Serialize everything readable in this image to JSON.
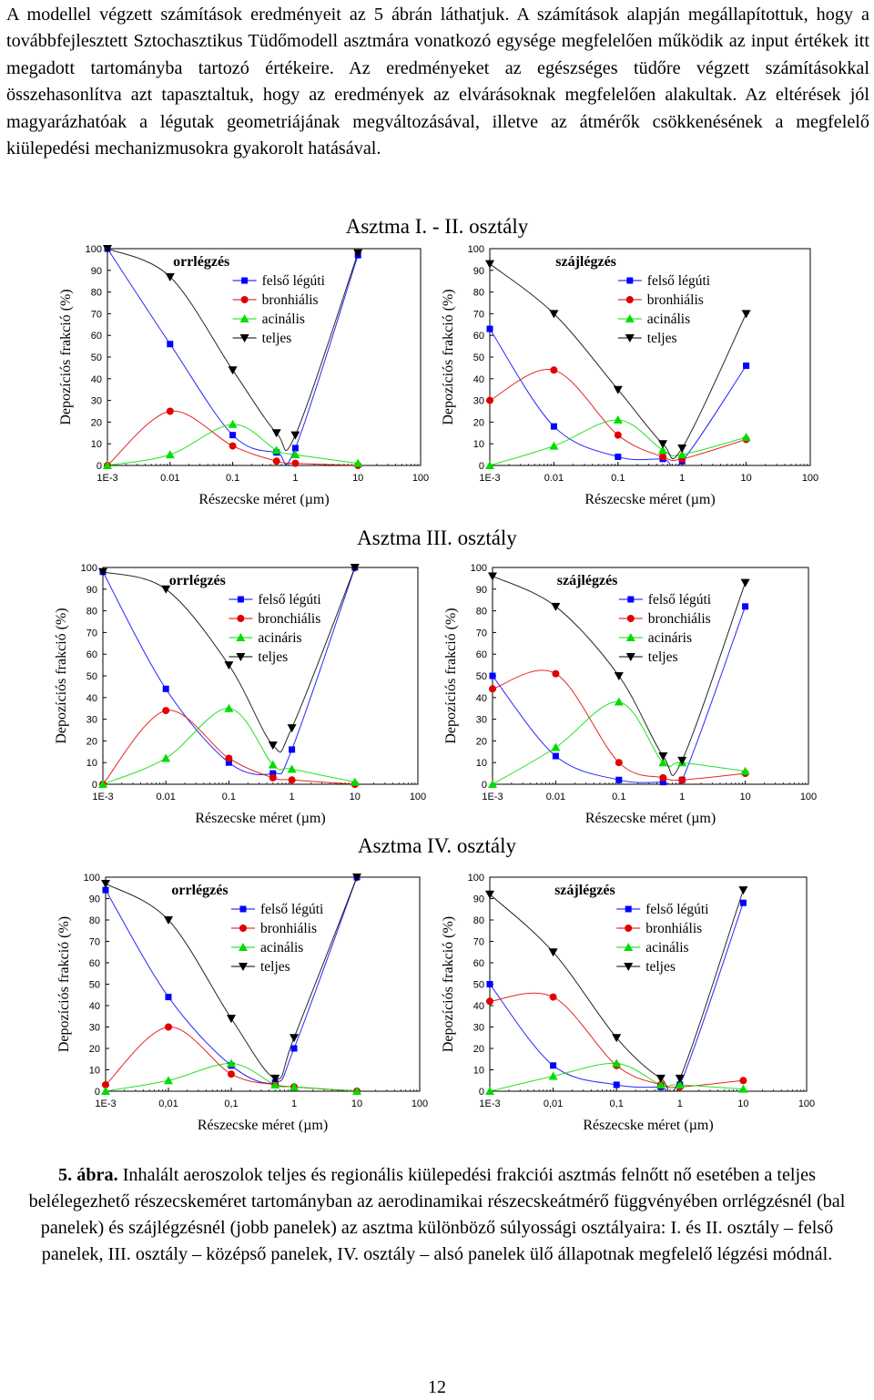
{
  "paragraph": "A modellel végzett számítások eredményeit az 5 ábrán láthatjuk. A számítások alapján megállapítottuk, hogy a továbbfejlesztett Sztochasztikus Tüdőmodell asztmára vonatkozó egysége megfelelően működik az input értékek itt megadott tartományba tartozó értékeire. Az eredményeket az egészséges tüdőre végzett számításokkal összehasonlítva azt tapasztaltuk, hogy az eredmények az elvárásoknak megfelelően alakultak. Az eltérések jól magyarázhatóak a légutak geometriájának megváltozásával, illetve az átmérők csökkenésének a megfelelő kiülepedési mechanizmusokra gyakorolt hatásával.",
  "rows": [
    {
      "heading": "Asztma I. - II. osztály"
    },
    {
      "heading": "Asztma III. osztály"
    },
    {
      "heading": "Asztma IV. osztály"
    }
  ],
  "caption": {
    "label": "5. ábra.",
    "text": " Inhalált aeroszolok teljes és regionális kiülepedési frakciói asztmás felnőtt nő esetében a teljes belélegezhető részecskeméret tartományban az aerodinamikai részecskeátmérő függvényében orrlégzésnél (bal panelek) és szájlégzésnél (jobb panelek) az asztma különböző súlyossági osztályaira: I. és II. osztály – felső panelek, III. osztály – középső panelek, IV. osztály – alsó panelek ülő állapotnak megfelelő légzési módnál."
  },
  "page_number": "12",
  "chart_data": [
    {
      "type": "line",
      "panel": "row1-left",
      "title": "orrlégzés",
      "xlabel": "Részecske méret (µm)",
      "ylabel": "Depozíciós frakció (%)",
      "x_scale": "log",
      "xlim": [
        0.001,
        100
      ],
      "ylim": [
        0,
        100
      ],
      "x_ticks": [
        "1E-3",
        "0.01",
        "0.1",
        "1",
        "10",
        "100"
      ],
      "y_ticks": [
        "0",
        "10",
        "20",
        "30",
        "40",
        "50",
        "60",
        "70",
        "80",
        "90",
        "100"
      ],
      "legend_position": "top-right",
      "series": [
        {
          "name": "felső légúti",
          "color": "#0000ff",
          "marker": "square",
          "x": [
            0.001,
            0.01,
            0.1,
            0.5,
            1,
            10
          ],
          "y": [
            100,
            56,
            14,
            6,
            8,
            97
          ]
        },
        {
          "name": "bronhiális",
          "color": "#e00000",
          "marker": "circle",
          "x": [
            0.001,
            0.01,
            0.1,
            0.5,
            1,
            10
          ],
          "y": [
            0,
            25,
            9,
            2,
            1,
            0
          ]
        },
        {
          "name": "acinális",
          "color": "#00dd00",
          "marker": "triangle-up",
          "x": [
            0.001,
            0.01,
            0.1,
            0.5,
            1,
            10
          ],
          "y": [
            0,
            5,
            19,
            7,
            5,
            1
          ]
        },
        {
          "name": "teljes",
          "color": "#000000",
          "marker": "triangle-down",
          "x": [
            0.001,
            0.01,
            0.1,
            0.5,
            1,
            10
          ],
          "y": [
            100,
            87,
            44,
            15,
            14,
            98
          ]
        }
      ]
    },
    {
      "type": "line",
      "panel": "row1-right",
      "title": "szájlégzés",
      "xlabel": "Részecske méret (µm)",
      "ylabel": "Depozíciós frakció (%)",
      "x_scale": "log",
      "xlim": [
        0.001,
        100
      ],
      "ylim": [
        0,
        100
      ],
      "x_ticks": [
        "1E-3",
        "0.01",
        "0.1",
        "1",
        "10",
        "100"
      ],
      "y_ticks": [
        "0",
        "10",
        "20",
        "30",
        "40",
        "50",
        "60",
        "70",
        "80",
        "90",
        "100"
      ],
      "legend_position": "top-right",
      "series": [
        {
          "name": "felső légúti",
          "color": "#0000ff",
          "marker": "square",
          "x": [
            0.001,
            0.01,
            0.1,
            0.5,
            1,
            10
          ],
          "y": [
            63,
            18,
            4,
            3,
            2,
            46
          ]
        },
        {
          "name": "bronhiális",
          "color": "#e00000",
          "marker": "circle",
          "x": [
            0.001,
            0.01,
            0.1,
            0.5,
            1,
            10
          ],
          "y": [
            30,
            44,
            14,
            4,
            3,
            12
          ]
        },
        {
          "name": "acinális",
          "color": "#00dd00",
          "marker": "triangle-up",
          "x": [
            0.001,
            0.01,
            0.1,
            0.5,
            1,
            10
          ],
          "y": [
            0,
            9,
            21,
            7,
            5,
            13
          ]
        },
        {
          "name": "teljes",
          "color": "#000000",
          "marker": "triangle-down",
          "x": [
            0.001,
            0.01,
            0.1,
            0.5,
            1,
            10
          ],
          "y": [
            93,
            70,
            35,
            10,
            8,
            70
          ]
        }
      ]
    },
    {
      "type": "line",
      "panel": "row2-left",
      "title": "orrlégzés",
      "xlabel": "Részecske méret (µm)",
      "ylabel": "Depozíciós frakció (%)",
      "x_scale": "log",
      "xlim": [
        0.001,
        100
      ],
      "ylim": [
        0,
        100
      ],
      "x_ticks": [
        "1E-3",
        "0.01",
        "0.1",
        "1",
        "10",
        "100"
      ],
      "y_ticks": [
        "0",
        "10",
        "20",
        "30",
        "40",
        "50",
        "60",
        "70",
        "80",
        "90",
        "100"
      ],
      "legend_position": "top-right",
      "series": [
        {
          "name": "felső légúti",
          "color": "#0000ff",
          "marker": "square",
          "x": [
            0.001,
            0.01,
            0.1,
            0.5,
            1,
            10
          ],
          "y": [
            98,
            44,
            10,
            5,
            16,
            100
          ]
        },
        {
          "name": "bronchiális",
          "color": "#e00000",
          "marker": "circle",
          "x": [
            0.001,
            0.01,
            0.1,
            0.5,
            1,
            10
          ],
          "y": [
            0,
            34,
            12,
            3,
            2,
            0
          ]
        },
        {
          "name": "acináris",
          "color": "#00dd00",
          "marker": "triangle-up",
          "x": [
            0.001,
            0.01,
            0.1,
            0.5,
            1,
            10
          ],
          "y": [
            0,
            12,
            35,
            9,
            7,
            1
          ]
        },
        {
          "name": "teljes",
          "color": "#000000",
          "marker": "triangle-down",
          "x": [
            0.001,
            0.01,
            0.1,
            0.5,
            1,
            10
          ],
          "y": [
            98,
            90,
            55,
            18,
            26,
            100
          ]
        }
      ]
    },
    {
      "type": "line",
      "panel": "row2-right",
      "title": "szájlégzés",
      "xlabel": "Részecske méret (µm)",
      "ylabel": "Depozíciós frakció (%)",
      "x_scale": "log",
      "xlim": [
        0.001,
        100
      ],
      "ylim": [
        0,
        100
      ],
      "x_ticks": [
        "1E-3",
        "0.01",
        "0.1",
        "1",
        "10",
        "100"
      ],
      "y_ticks": [
        "0",
        "10",
        "20",
        "30",
        "40",
        "50",
        "60",
        "70",
        "80",
        "90",
        "100"
      ],
      "legend_position": "top-right",
      "series": [
        {
          "name": "felső légúti",
          "color": "#0000ff",
          "marker": "square",
          "x": [
            0.001,
            0.01,
            0.1,
            0.5,
            1,
            10
          ],
          "y": [
            50,
            13,
            2,
            1,
            2,
            82
          ]
        },
        {
          "name": "bronchiális",
          "color": "#e00000",
          "marker": "circle",
          "x": [
            0.001,
            0.01,
            0.1,
            0.5,
            1,
            10
          ],
          "y": [
            44,
            51,
            10,
            3,
            2,
            5
          ]
        },
        {
          "name": "acináris",
          "color": "#00dd00",
          "marker": "triangle-up",
          "x": [
            0.001,
            0.01,
            0.1,
            0.5,
            1,
            10
          ],
          "y": [
            0,
            17,
            38,
            10,
            10,
            6
          ]
        },
        {
          "name": "teljes",
          "color": "#000000",
          "marker": "triangle-down",
          "x": [
            0.001,
            0.01,
            0.1,
            0.5,
            1,
            10
          ],
          "y": [
            96,
            82,
            50,
            13,
            11,
            93
          ]
        }
      ]
    },
    {
      "type": "line",
      "panel": "row3-left",
      "title": "orrlégzés",
      "xlabel": "Részecske méret (µm)",
      "ylabel": "Depozíciós frakció (%)",
      "x_scale": "log",
      "xlim": [
        0.001,
        100
      ],
      "ylim": [
        0,
        100
      ],
      "x_ticks": [
        "1E-3",
        "0,01",
        "0,1",
        "1",
        "10",
        "100"
      ],
      "y_ticks": [
        "0",
        "10",
        "20",
        "30",
        "40",
        "50",
        "60",
        "70",
        "80",
        "90",
        "100"
      ],
      "legend_position": "top-right",
      "series": [
        {
          "name": "felső légúti",
          "color": "#0000ff",
          "marker": "square",
          "x": [
            0.001,
            0.01,
            0.1,
            0.5,
            1,
            10
          ],
          "y": [
            94,
            44,
            12,
            4,
            20,
            100
          ]
        },
        {
          "name": "bronhiális",
          "color": "#e00000",
          "marker": "circle",
          "x": [
            0.001,
            0.01,
            0.1,
            0.5,
            1,
            10
          ],
          "y": [
            3,
            30,
            8,
            3,
            2,
            0
          ]
        },
        {
          "name": "acinális",
          "color": "#00dd00",
          "marker": "triangle-up",
          "x": [
            0.001,
            0.01,
            0.1,
            0.5,
            1,
            10
          ],
          "y": [
            0,
            5,
            13,
            3,
            2,
            0
          ]
        },
        {
          "name": "teljes",
          "color": "#000000",
          "marker": "triangle-down",
          "x": [
            0.001,
            0.01,
            0.1,
            0.5,
            1,
            10
          ],
          "y": [
            97,
            80,
            34,
            6,
            25,
            100
          ]
        }
      ]
    },
    {
      "type": "line",
      "panel": "row3-right",
      "title": "szájlégzés",
      "xlabel": "Részecske méret (µm)",
      "ylabel": "Depozíciós frakció (%)",
      "x_scale": "log",
      "xlim": [
        0.001,
        100
      ],
      "ylim": [
        0,
        100
      ],
      "x_ticks": [
        "1E-3",
        "0,01",
        "0,1",
        "1",
        "10",
        "100"
      ],
      "y_ticks": [
        "0",
        "10",
        "20",
        "30",
        "40",
        "50",
        "60",
        "70",
        "80",
        "90",
        "100"
      ],
      "legend_position": "top-right",
      "series": [
        {
          "name": "felső légúti",
          "color": "#0000ff",
          "marker": "square",
          "x": [
            0.001,
            0.01,
            0.1,
            0.5,
            1,
            10
          ],
          "y": [
            50,
            12,
            3,
            2,
            3,
            88
          ]
        },
        {
          "name": "bronhiális",
          "color": "#e00000",
          "marker": "circle",
          "x": [
            0.001,
            0.01,
            0.1,
            0.5,
            1,
            10
          ],
          "y": [
            42,
            44,
            12,
            3,
            2,
            5
          ]
        },
        {
          "name": "acinális",
          "color": "#00dd00",
          "marker": "triangle-up",
          "x": [
            0.001,
            0.01,
            0.1,
            0.5,
            1,
            10
          ],
          "y": [
            0,
            7,
            13,
            3,
            3,
            1
          ]
        },
        {
          "name": "teljes",
          "color": "#000000",
          "marker": "triangle-down",
          "x": [
            0.001,
            0.01,
            0.1,
            0.5,
            1,
            10
          ],
          "y": [
            92,
            65,
            25,
            6,
            6,
            94
          ]
        }
      ]
    }
  ]
}
